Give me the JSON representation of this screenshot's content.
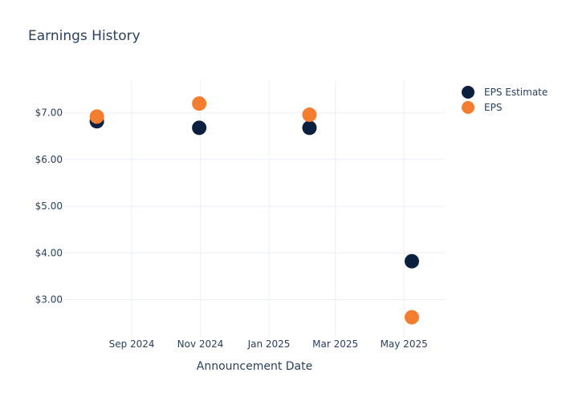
{
  "chart_data": {
    "type": "scatter",
    "title": "Earnings History",
    "xlabel": "Announcement Date",
    "ylabel": "",
    "x_ticks": [
      {
        "date": "2024-09-01",
        "label": "Sep 2024"
      },
      {
        "date": "2024-11-01",
        "label": "Nov 2024"
      },
      {
        "date": "2025-01-01",
        "label": "Jan 2025"
      },
      {
        "date": "2025-03-01",
        "label": "Mar 2025"
      },
      {
        "date": "2025-05-01",
        "label": "May 2025"
      }
    ],
    "y_ticks": [
      {
        "value": 3,
        "label": "$3.00"
      },
      {
        "value": 4,
        "label": "$4.00"
      },
      {
        "value": 5,
        "label": "$5.00"
      },
      {
        "value": 6,
        "label": "$6.00"
      },
      {
        "value": 7,
        "label": "$7.00"
      }
    ],
    "xlim": [
      "2024-07-03",
      "2025-06-07"
    ],
    "ylim": [
      2.2,
      7.7
    ],
    "grid": true,
    "legend_position": "top-right",
    "series": [
      {
        "name": "EPS Estimate",
        "color": "#0b1f3f",
        "points": [
          {
            "x": "2024-08-01",
            "y": 6.82
          },
          {
            "x": "2024-10-31",
            "y": 6.68
          },
          {
            "x": "2025-02-06",
            "y": 6.68
          },
          {
            "x": "2025-05-08",
            "y": 3.82
          }
        ]
      },
      {
        "name": "EPS",
        "color": "#f47d30",
        "points": [
          {
            "x": "2024-08-01",
            "y": 6.92
          },
          {
            "x": "2024-10-31",
            "y": 7.2
          },
          {
            "x": "2025-02-06",
            "y": 6.96
          },
          {
            "x": "2025-05-08",
            "y": 2.62
          }
        ]
      }
    ]
  }
}
